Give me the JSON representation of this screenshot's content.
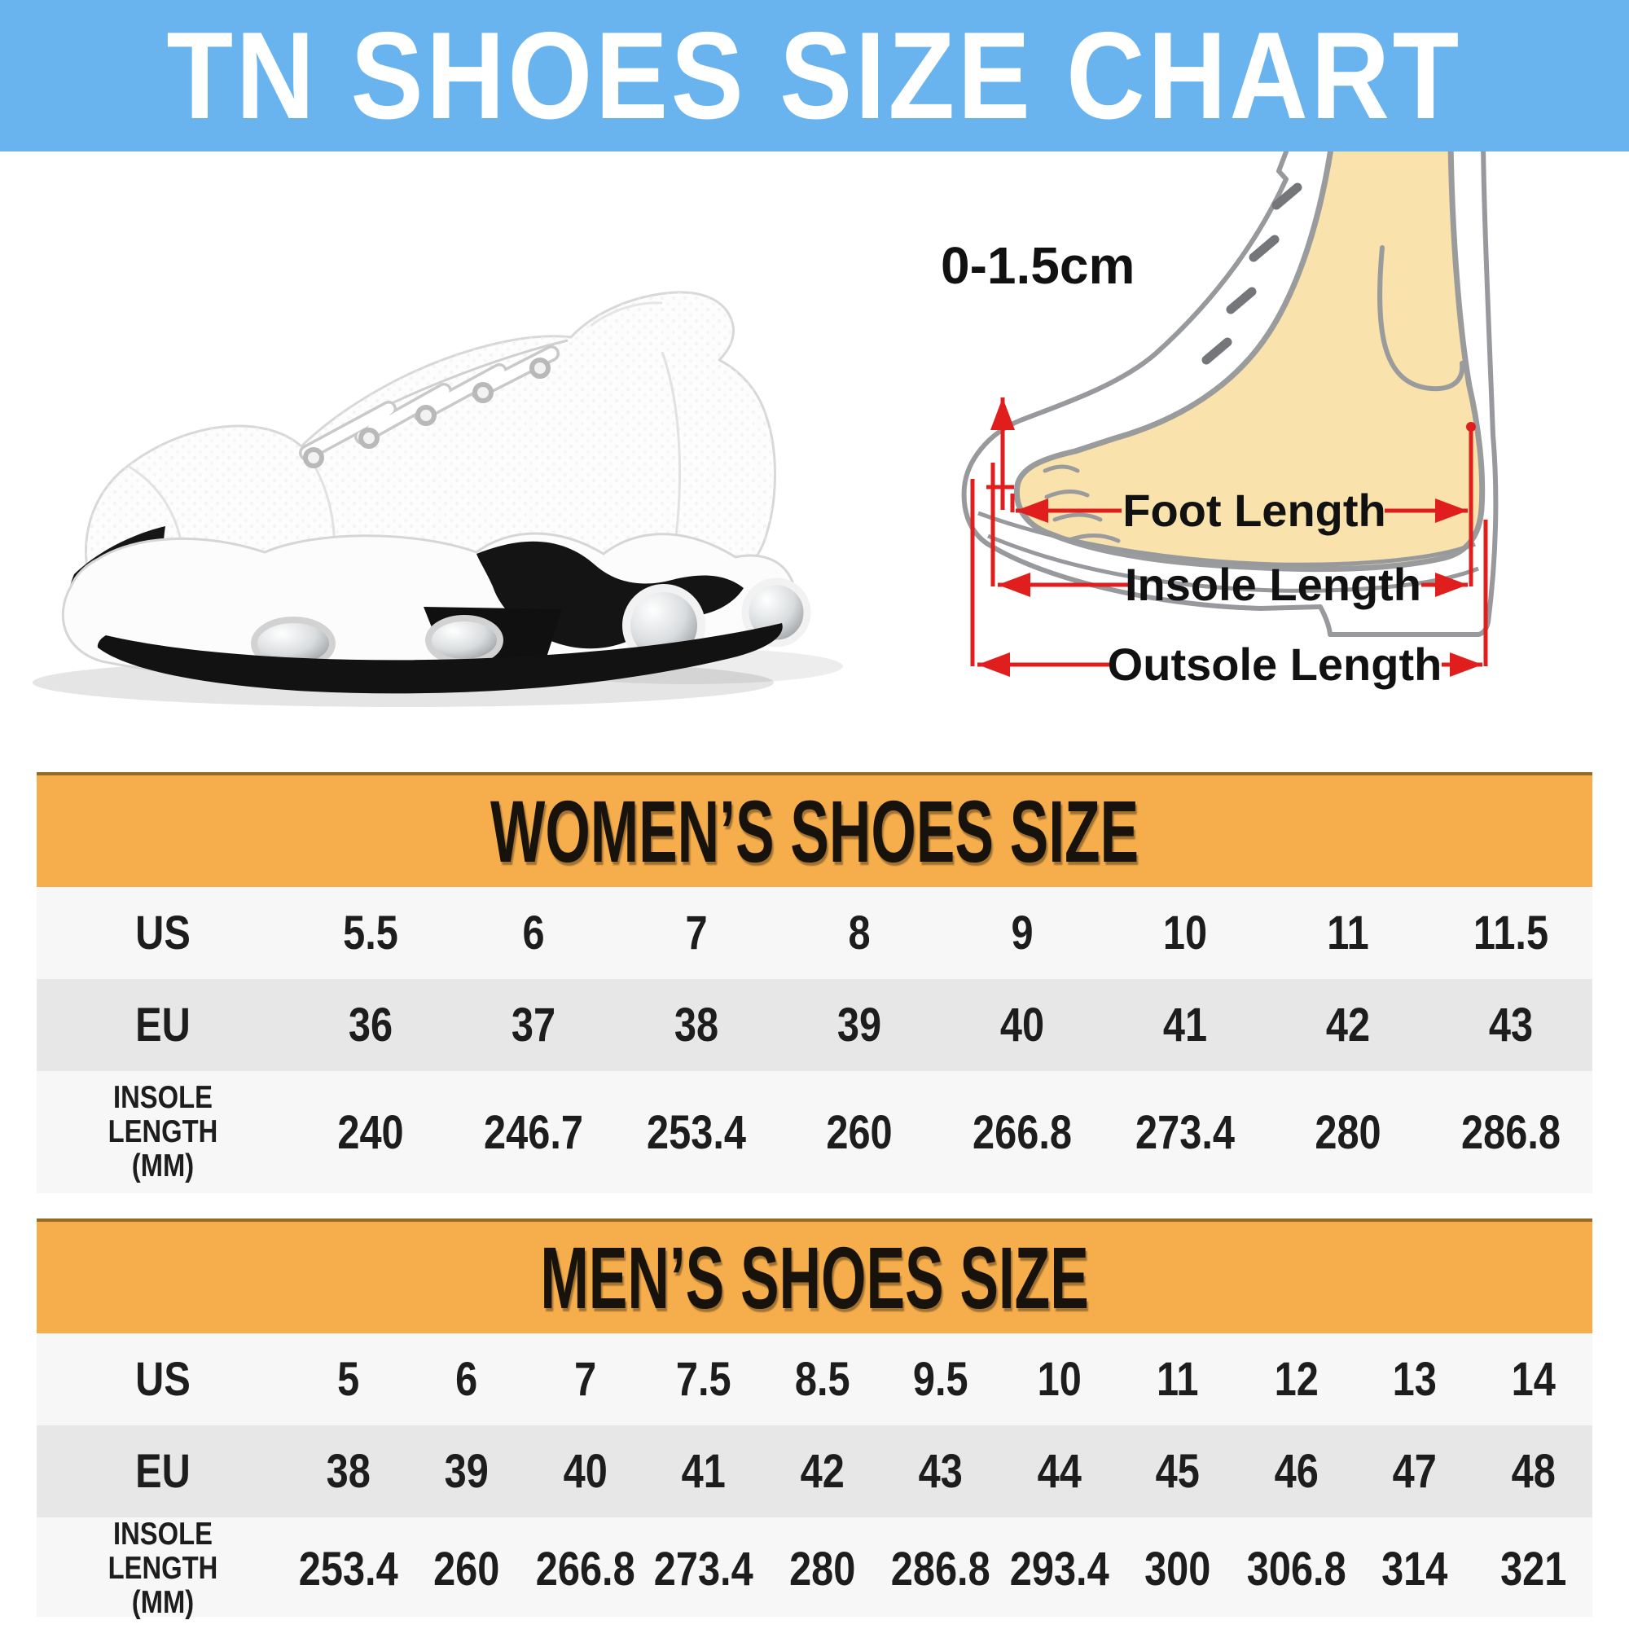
{
  "banner": {
    "title": "TN SHOES SIZE CHART",
    "bg_color": "#69b4ef",
    "text_color": "#ffffff"
  },
  "hero": {
    "sneaker_image": "white-tn-air-cushion-sneaker-side-view",
    "diagram": {
      "gap_label": "0-1.5cm",
      "foot_length_label": "Foot Length",
      "insole_length_label": "Insole Length",
      "outsole_length_label": "Outsole Length",
      "measure_color": "#e01e1e",
      "foot_skin_color": "#f9e2ac",
      "outline_color": "#97999c"
    }
  },
  "tables": [
    {
      "title": "WOMEN’S SHOES SIZE",
      "header_color": "#f6ae4c",
      "rows": [
        {
          "key": "us",
          "label": "US",
          "values": [
            "5.5",
            "6",
            "7",
            "8",
            "9",
            "10",
            "11",
            "11.5"
          ]
        },
        {
          "key": "eu",
          "label": "EU",
          "values": [
            "36",
            "37",
            "38",
            "39",
            "40",
            "41",
            "42",
            "43"
          ]
        },
        {
          "key": "insole",
          "label": "INSOLE LENGTH",
          "label2": "(MM)",
          "values": [
            "240",
            "246.7",
            "253.4",
            "260",
            "266.8",
            "273.4",
            "280",
            "286.8"
          ]
        }
      ]
    },
    {
      "title": "MEN’S SHOES SIZE",
      "header_color": "#f6ae4c",
      "rows": [
        {
          "key": "us",
          "label": "US",
          "values": [
            "5",
            "6",
            "7",
            "7.5",
            "8.5",
            "9.5",
            "10",
            "11",
            "12",
            "13",
            "14"
          ]
        },
        {
          "key": "eu",
          "label": "EU",
          "values": [
            "38",
            "39",
            "40",
            "41",
            "42",
            "43",
            "44",
            "45",
            "46",
            "47",
            "48"
          ]
        },
        {
          "key": "insole",
          "label": "INSOLE LENGTH",
          "label2": "(MM)",
          "values": [
            "253.4",
            "260",
            "266.8",
            "273.4",
            "280",
            "286.8",
            "293.4",
            "300",
            "306.8",
            "314",
            "321"
          ]
        }
      ]
    }
  ],
  "chart_data": [
    {
      "type": "table",
      "title": "WOMEN’S SHOES SIZE",
      "row_headers": [
        "US",
        "EU",
        "INSOLE LENGTH (MM)"
      ],
      "rows": [
        [
          "5.5",
          "6",
          "7",
          "8",
          "9",
          "10",
          "11",
          "11.5"
        ],
        [
          "36",
          "37",
          "38",
          "39",
          "40",
          "41",
          "42",
          "43"
        ],
        [
          "240",
          "246.7",
          "253.4",
          "260",
          "266.8",
          "273.4",
          "280",
          "286.8"
        ]
      ]
    },
    {
      "type": "table",
      "title": "MEN’S SHOES SIZE",
      "row_headers": [
        "US",
        "EU",
        "INSOLE LENGTH (MM)"
      ],
      "rows": [
        [
          "5",
          "6",
          "7",
          "7.5",
          "8.5",
          "9.5",
          "10",
          "11",
          "12",
          "13",
          "14"
        ],
        [
          "38",
          "39",
          "40",
          "41",
          "42",
          "43",
          "44",
          "45",
          "46",
          "47",
          "48"
        ],
        [
          "253.4",
          "260",
          "266.8",
          "273.4",
          "280",
          "286.8",
          "293.4",
          "300",
          "306.8",
          "314",
          "321"
        ]
      ]
    }
  ]
}
